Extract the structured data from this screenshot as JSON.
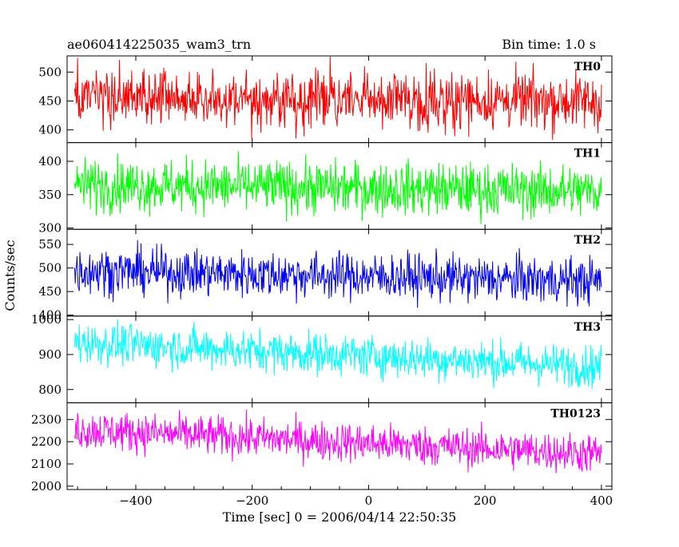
{
  "header": {
    "title": "ae060414225035_wam3_trn",
    "bin_time": "Bin time: 1.0 s"
  },
  "axes": {
    "xlabel": "Time [sec] 0 = 2006/04/14 22:50:35",
    "ylabel": "Counts/sec",
    "xlim": [
      -518,
      418
    ],
    "xticks": [
      -400,
      -200,
      0,
      200,
      400
    ],
    "xtick_labels": [
      "−400",
      "−200",
      "0",
      "200",
      "400"
    ]
  },
  "chart_data": {
    "type": "line",
    "title": "ae060414225035_wam3_trn",
    "xlabel": "Time [sec] 0 = 2006/04/14 22:50:35",
    "ylabel": "Counts/sec",
    "x_range": [
      -505,
      400
    ],
    "bin_time_s": 1.0,
    "grid": false,
    "legend": "none",
    "panels": [
      {
        "label": "TH0",
        "color": "#ff0000",
        "ylim": [
          378,
          528
        ],
        "yticks": [
          400,
          450,
          500
        ],
        "trend": [
          [
            -505,
            455
          ],
          [
            400,
            450
          ]
        ],
        "noise_amplitude": 25,
        "x": [
          -505,
          -400,
          -300,
          -200,
          -100,
          0,
          100,
          200,
          300,
          400
        ],
        "values": [
          455,
          452,
          455,
          450,
          452,
          448,
          455,
          450,
          455,
          450
        ]
      },
      {
        "label": "TH1",
        "color": "#00ff00",
        "ylim": [
          298,
          428
        ],
        "yticks": [
          300,
          350,
          400
        ],
        "trend": [
          [
            -505,
            365
          ],
          [
            400,
            355
          ]
        ],
        "noise_amplitude": 20,
        "x": [
          -505,
          -400,
          -300,
          -200,
          -100,
          0,
          100,
          200,
          300,
          400
        ],
        "values": [
          365,
          365,
          362,
          360,
          360,
          358,
          356,
          355,
          355,
          355
        ]
      },
      {
        "label": "TH2",
        "color": "#0000ff",
        "ylim": [
          398,
          582
        ],
        "yticks": [
          400,
          450,
          500,
          550
        ],
        "trend": [
          [
            -505,
            495
          ],
          [
            400,
            472
          ]
        ],
        "noise_amplitude": 25,
        "x": [
          -505,
          -400,
          -300,
          -200,
          -100,
          0,
          100,
          200,
          300,
          400
        ],
        "values": [
          495,
          493,
          490,
          485,
          482,
          478,
          476,
          475,
          473,
          472
        ]
      },
      {
        "label": "TH3",
        "color": "#00ffff",
        "ylim": [
          762,
          1010
        ],
        "yticks": [
          800,
          900,
          1000
        ],
        "trend": [
          [
            -505,
            935
          ],
          [
            400,
            865
          ]
        ],
        "noise_amplitude": 30,
        "x": [
          -505,
          -400,
          -300,
          -200,
          -100,
          0,
          100,
          200,
          300,
          400
        ],
        "values": [
          935,
          925,
          910,
          900,
          892,
          882,
          876,
          872,
          868,
          865
        ]
      },
      {
        "label": "TH0123",
        "color": "#ff00ff",
        "ylim": [
          1985,
          2375
        ],
        "yticks": [
          2000,
          2100,
          2200,
          2300
        ],
        "trend": [
          [
            -505,
            2255
          ],
          [
            400,
            2145
          ]
        ],
        "noise_amplitude": 45,
        "x": [
          -505,
          -400,
          -300,
          -200,
          -100,
          0,
          100,
          200,
          300,
          400
        ],
        "values": [
          2255,
          2240,
          2210,
          2190,
          2175,
          2160,
          2155,
          2150,
          2148,
          2145
        ]
      }
    ]
  }
}
